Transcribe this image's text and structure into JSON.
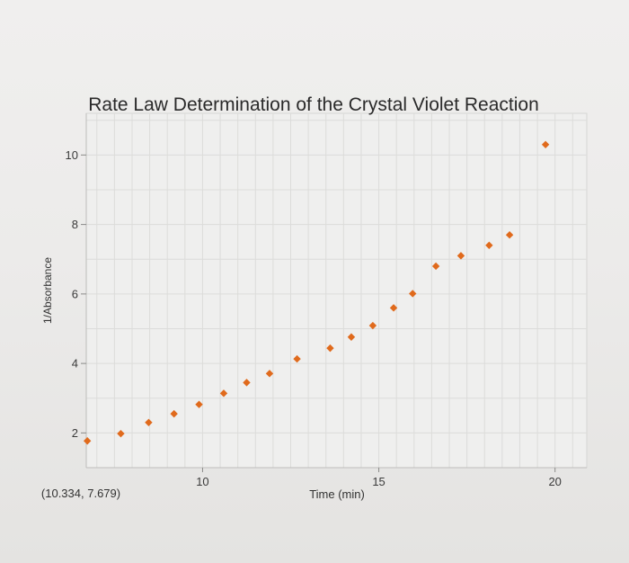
{
  "chart_data": {
    "type": "scatter",
    "title": "Rate Law Determination of the Crystal Violet Reaction",
    "xlabel": "Time (min)",
    "ylabel": "1/Absorbance",
    "xlim": [
      6.7,
      20.9
    ],
    "ylim": [
      1.0,
      11.2
    ],
    "xticks": [
      10,
      15,
      20
    ],
    "yticks": [
      2,
      4,
      6,
      8,
      10
    ],
    "grid": true,
    "legend": "none",
    "marker_color": "#e06a1c",
    "cursor_readout": "(10.334, 7.679)",
    "series": [
      {
        "x": [
          6.73,
          7.68,
          8.47,
          9.19,
          9.9,
          10.6,
          11.25,
          11.9,
          12.68,
          13.62,
          14.22,
          14.83,
          15.42,
          15.96,
          16.62,
          17.33,
          18.13,
          18.71,
          19.73
        ],
        "y": [
          1.77,
          1.98,
          2.3,
          2.55,
          2.82,
          3.14,
          3.45,
          3.71,
          4.13,
          4.44,
          4.76,
          5.09,
          5.6,
          6.01,
          6.8,
          7.1,
          7.4,
          7.7,
          10.3
        ]
      }
    ]
  }
}
